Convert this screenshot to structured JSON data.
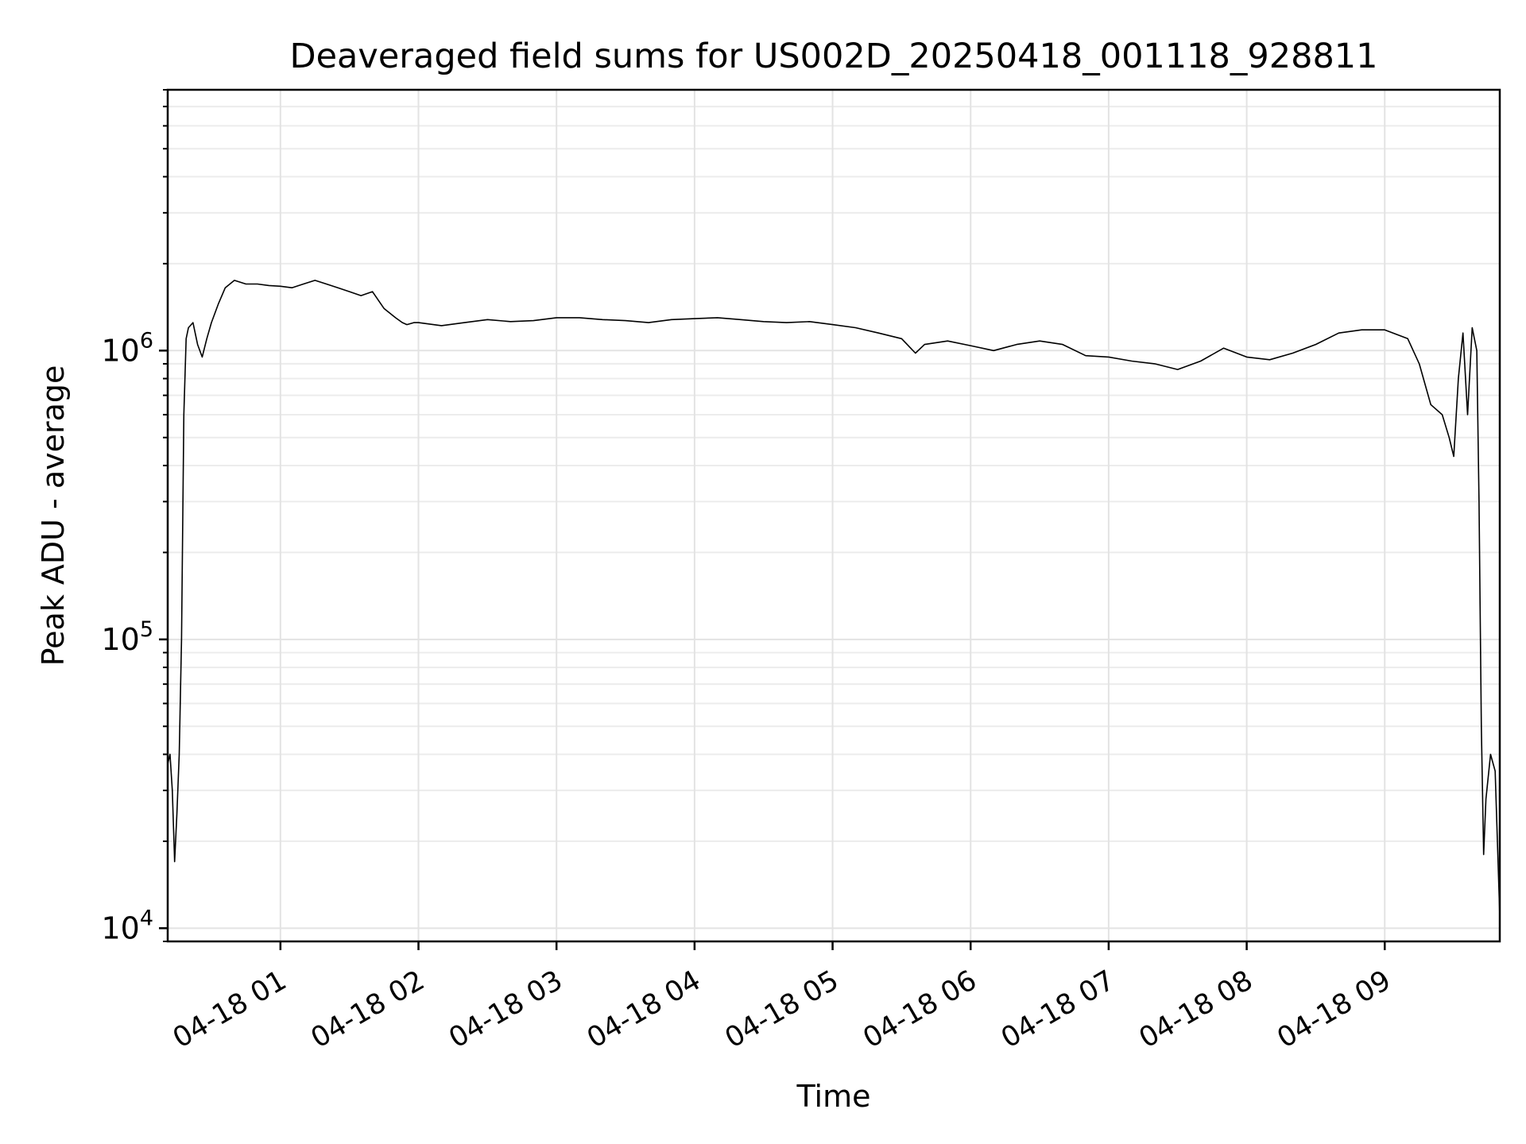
{
  "chart_data": {
    "type": "line",
    "title": "Deaveraged field sums for US002D_20250418_001118_928811",
    "xlabel": "Time",
    "ylabel": "Peak ADU - average",
    "yscale": "log",
    "ylim": [
      9000,
      8000000
    ],
    "xlim": [
      "2025-04-18 00:11",
      "2025-04-18 09:50"
    ],
    "grid": "major and minor",
    "line_color": "#000000",
    "x_ticks": [
      "04-18 01",
      "04-18 02",
      "04-18 03",
      "04-18 04",
      "04-18 05",
      "04-18 06",
      "04-18 07",
      "04-18 08",
      "04-18 09"
    ],
    "y_ticks": [
      {
        "value": 10000,
        "base": "10",
        "exp": "4"
      },
      {
        "value": 100000,
        "base": "10",
        "exp": "5"
      },
      {
        "value": 1000000,
        "base": "10",
        "exp": "6"
      }
    ],
    "series": [
      {
        "x": [
          "00:11",
          "00:12",
          "00:13",
          "00:14",
          "00:15",
          "00:16",
          "00:17",
          "00:18",
          "00:19",
          "00:20",
          "00:22",
          "00:24",
          "00:26",
          "00:28",
          "00:30",
          "00:33",
          "00:36",
          "00:40",
          "00:45",
          "00:50",
          "00:55",
          "01:00",
          "01:05",
          "01:10",
          "01:15",
          "01:20",
          "01:25",
          "01:30",
          "01:35",
          "01:40",
          "01:45",
          "01:50",
          "01:53",
          "01:55",
          "01:58",
          "02:00",
          "02:10",
          "02:20",
          "02:30",
          "02:40",
          "02:50",
          "03:00",
          "03:10",
          "03:20",
          "03:30",
          "03:40",
          "03:50",
          "04:00",
          "04:10",
          "04:20",
          "04:30",
          "04:40",
          "04:50",
          "05:00",
          "05:10",
          "05:20",
          "05:30",
          "05:36",
          "05:40",
          "05:50",
          "06:00",
          "06:10",
          "06:20",
          "06:30",
          "06:40",
          "06:50",
          "07:00",
          "07:10",
          "07:20",
          "07:25",
          "07:30",
          "07:40",
          "07:50",
          "08:00",
          "08:10",
          "08:20",
          "08:30",
          "08:40",
          "08:50",
          "09:00",
          "09:10",
          "09:15",
          "09:20",
          "09:25",
          "09:28",
          "09:30",
          "09:32",
          "09:34",
          "09:36",
          "09:38",
          "09:40",
          "09:41",
          "09:42",
          "09:43",
          "09:44",
          "09:46",
          "09:48",
          "09:50"
        ],
        "y": [
          37000,
          40000,
          30000,
          17000,
          25000,
          40000,
          100000,
          600000,
          1100000,
          1200000,
          1250000,
          1050000,
          950000,
          1100000,
          1250000,
          1450000,
          1650000,
          1750000,
          1700000,
          1700000,
          1680000,
          1670000,
          1650000,
          1700000,
          1750000,
          1700000,
          1650000,
          1600000,
          1550000,
          1600000,
          1400000,
          1300000,
          1250000,
          1230000,
          1250000,
          1250000,
          1220000,
          1250000,
          1280000,
          1260000,
          1270000,
          1300000,
          1300000,
          1280000,
          1270000,
          1250000,
          1280000,
          1290000,
          1300000,
          1280000,
          1260000,
          1250000,
          1260000,
          1230000,
          1200000,
          1150000,
          1100000,
          980000,
          1050000,
          1080000,
          1040000,
          1000000,
          1050000,
          1080000,
          1050000,
          960000,
          950000,
          920000,
          900000,
          880000,
          860000,
          920000,
          1020000,
          950000,
          930000,
          980000,
          1050000,
          1150000,
          1180000,
          1180000,
          1100000,
          900000,
          650000,
          600000,
          500000,
          430000,
          800000,
          1150000,
          600000,
          1200000,
          1000000,
          300000,
          50000,
          18000,
          28000,
          40000,
          35000,
          11000
        ]
      }
    ]
  }
}
